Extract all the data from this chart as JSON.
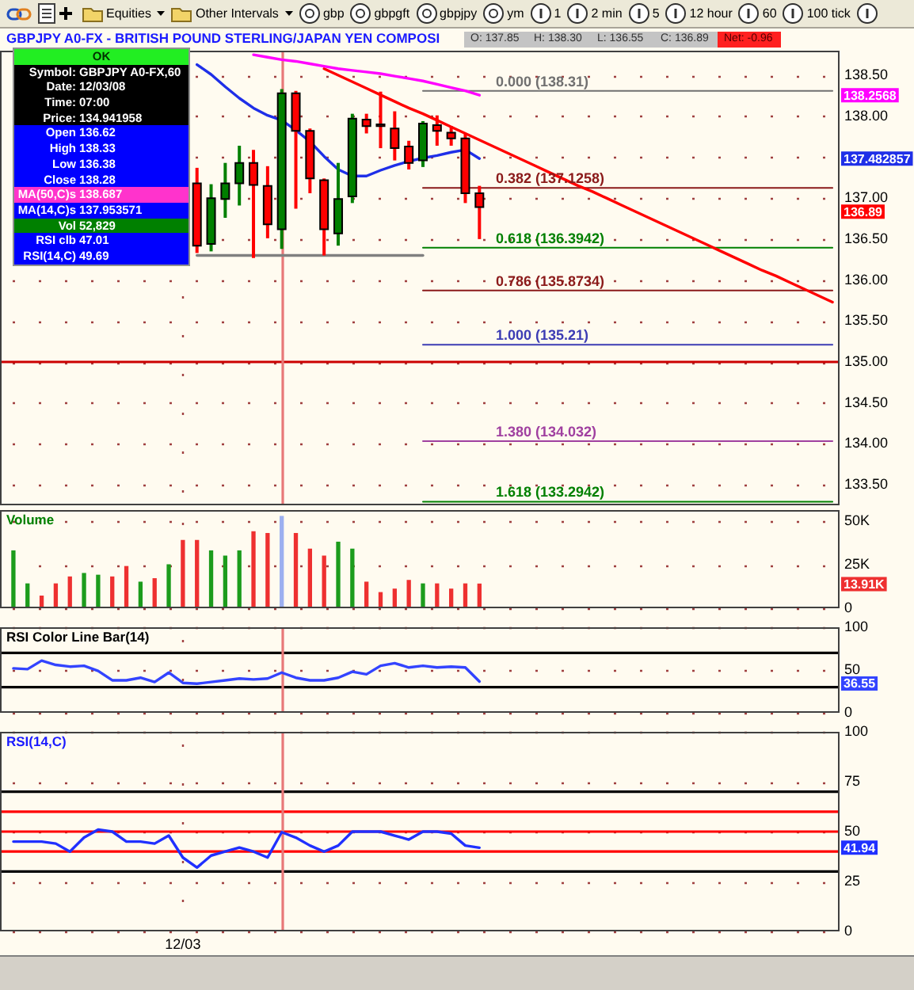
{
  "chart_data": [
    {
      "type": "other",
      "annotations": [
        "Equities",
        "Other Intervals",
        "gbp",
        "gbpgft",
        "gbpjpy",
        "ym",
        "1",
        "2 min",
        "5",
        "12 hour",
        "60",
        "100 tick"
      ]
    },
    {
      "type": "candlestick",
      "title": "GBPJPY A0-FX - BRITISH POUND STERLING/JAPAN YEN COMPOSI",
      "annotations": [
        "O: 137.85",
        "H: 138.30",
        "L: 136.55",
        "C: 136.89",
        "Net: -0.96",
        "138.2568",
        "137.482857",
        "136.89"
      ],
      "categories": [
        null,
        null,
        null,
        null,
        null,
        null,
        null,
        null,
        null,
        null,
        null,
        null,
        null,
        null,
        null,
        null,
        null,
        null,
        null,
        null,
        null,
        null,
        null,
        null,
        null,
        null,
        null,
        null,
        null,
        null,
        null,
        null,
        null,
        null,
        null,
        null,
        null,
        null,
        null,
        null,
        null,
        null,
        null,
        null,
        null,
        null,
        null,
        null,
        null,
        null,
        null,
        null,
        null,
        null,
        null,
        null,
        null,
        null,
        null
      ],
      "ohlc": [
        null,
        null,
        null,
        null,
        null,
        null,
        null,
        null,
        null,
        null,
        null,
        null,
        null,
        [
          137.18,
          137.37,
          136.33,
          136.42
        ],
        [
          136.44,
          137.17,
          136.35,
          137.0
        ],
        [
          136.99,
          137.43,
          136.76,
          137.18
        ],
        [
          137.18,
          137.64,
          136.91,
          137.43
        ],
        [
          137.43,
          137.59,
          136.27,
          137.16
        ],
        [
          137.15,
          137.39,
          136.51,
          136.68
        ],
        [
          136.62,
          138.33,
          136.38,
          138.28
        ],
        [
          138.28,
          138.31,
          136.87,
          137.82
        ],
        [
          137.82,
          137.85,
          137.06,
          137.24
        ],
        [
          137.22,
          137.24,
          136.3,
          136.62
        ],
        [
          136.57,
          137.43,
          136.42,
          136.99
        ],
        [
          137.02,
          138.03,
          136.94,
          137.97
        ],
        [
          137.96,
          138.03,
          137.79,
          137.88
        ],
        [
          137.9,
          138.3,
          137.61,
          137.88
        ],
        [
          137.85,
          138.06,
          137.46,
          137.61
        ],
        [
          137.63,
          137.7,
          137.35,
          137.43
        ],
        [
          137.46,
          137.94,
          137.38,
          137.91
        ],
        [
          137.89,
          138.01,
          137.64,
          137.82
        ],
        [
          137.8,
          137.88,
          137.64,
          137.73
        ],
        [
          137.73,
          137.79,
          136.94,
          137.06
        ],
        [
          137.06,
          137.15,
          136.5,
          136.89
        ],
        null,
        null,
        null,
        null,
        null,
        null,
        null,
        null,
        null,
        null,
        null,
        null,
        null,
        null,
        null,
        null,
        null,
        null,
        null,
        null,
        null,
        null,
        null,
        null,
        null
      ],
      "colors": [
        null,
        null,
        null,
        null,
        null,
        null,
        null,
        null,
        null,
        null,
        null,
        null,
        null,
        "#ff0000",
        "#008000",
        "#008000",
        "#008000",
        "#ff0000",
        "#ff0000",
        "#008000",
        "#ff0000",
        "#ff0000",
        "#ff0000",
        "#008000",
        "#008000",
        "#ff0000",
        "#ff0000",
        "#ff0000",
        "#ff0000",
        "#008000",
        "#ff0000",
        "#ff0000",
        "#ff0000",
        "#ff0000",
        null,
        null,
        null,
        null,
        null,
        null,
        null,
        null,
        null,
        null,
        null,
        null,
        null,
        null,
        null,
        null,
        null,
        null,
        null,
        null,
        null,
        null,
        null,
        null,
        null
      ],
      "series": [
        {
          "type": "line",
          "color": "#ff00ff",
          "values": [
            null,
            null,
            null,
            null,
            null,
            null,
            null,
            null,
            null,
            null,
            null,
            null,
            null,
            null,
            null,
            null,
            null,
            138.75,
            138.72,
            138.69,
            138.67,
            138.64,
            138.61,
            138.58,
            138.56,
            138.54,
            138.52,
            138.49,
            138.46,
            138.43,
            138.39,
            138.35,
            138.31,
            138.2568,
            null,
            null,
            null,
            null,
            null,
            null,
            null,
            null,
            null,
            null,
            null,
            null,
            null,
            null,
            null,
            null,
            null,
            null,
            null,
            null,
            null,
            null,
            null,
            null,
            null
          ]
        },
        {
          "type": "line",
          "color": "#1f2fe8",
          "values": [
            null,
            null,
            null,
            null,
            null,
            null,
            null,
            null,
            null,
            null,
            null,
            null,
            null,
            138.63,
            138.51,
            138.36,
            138.22,
            138.1,
            138.01,
            137.95,
            137.83,
            137.69,
            137.51,
            137.35,
            137.27,
            137.27,
            137.34,
            137.4,
            137.45,
            137.49,
            137.52,
            137.56,
            137.59,
            137.482857,
            null,
            null,
            null,
            null,
            null,
            null,
            null,
            null,
            null,
            null,
            null,
            null,
            null,
            null,
            null,
            null,
            null,
            null,
            null,
            null,
            null,
            null,
            null,
            null,
            null
          ]
        },
        {
          "type": "line",
          "color": "#ff0000",
          "values": [
            null,
            null,
            null,
            null,
            null,
            null,
            null,
            null,
            null,
            null,
            null,
            null,
            null,
            null,
            null,
            null,
            null,
            null,
            null,
            null,
            null,
            null,
            138.58,
            138.5,
            138.42,
            138.34,
            138.26,
            138.18,
            138.1,
            138.03,
            137.95,
            137.87,
            137.79,
            137.71,
            137.63,
            137.55,
            137.47,
            137.39,
            137.31,
            137.23,
            137.15,
            137.08,
            137.0,
            136.92,
            136.84,
            136.76,
            136.68,
            136.6,
            136.52,
            136.44,
            136.36,
            136.28,
            136.2,
            136.12,
            136.05,
            135.97,
            135.89,
            135.81,
            135.73
          ]
        },
        {
          "type": "line",
          "color": "#808080",
          "values": [
            null,
            null,
            null,
            null,
            null,
            null,
            null,
            null,
            null,
            null,
            null,
            null,
            null,
            136.3,
            136.3,
            136.3,
            136.3,
            136.3,
            136.3,
            136.3,
            136.3,
            136.3,
            136.3,
            136.3,
            136.3,
            136.3,
            136.3,
            136.3,
            136.3,
            136.3,
            null,
            null,
            null,
            null,
            null,
            null,
            null,
            null,
            null,
            null,
            null,
            null,
            null,
            null,
            null,
            null,
            null,
            null,
            null,
            null,
            null,
            null,
            null,
            null,
            null,
            null,
            null,
            null,
            null
          ]
        },
        {
          "type": "line",
          "name": "0.000 (138.31)",
          "color": "#707070",
          "values": [
            null,
            null,
            null,
            null,
            null,
            null,
            null,
            null,
            null,
            null,
            null,
            null,
            null,
            null,
            null,
            null,
            null,
            null,
            null,
            null,
            null,
            null,
            null,
            null,
            null,
            null,
            null,
            null,
            null,
            138.31,
            138.31,
            138.31,
            138.31,
            138.31,
            138.31,
            138.31,
            138.31,
            138.31,
            138.31,
            138.31,
            138.31,
            138.31,
            138.31,
            138.31,
            138.31,
            138.31,
            138.31,
            138.31,
            138.31,
            138.31,
            138.31,
            138.31,
            138.31,
            138.31,
            138.31,
            138.31,
            138.31,
            138.31,
            138.31
          ]
        },
        {
          "type": "line",
          "name": "0.382 (137.1258)",
          "color": "#8b1a1a",
          "values": [
            null,
            null,
            null,
            null,
            null,
            null,
            null,
            null,
            null,
            null,
            null,
            null,
            null,
            null,
            null,
            null,
            null,
            null,
            null,
            null,
            null,
            null,
            null,
            null,
            null,
            null,
            null,
            null,
            null,
            137.1258,
            137.1258,
            137.1258,
            137.1258,
            137.1258,
            137.1258,
            137.1258,
            137.1258,
            137.1258,
            137.1258,
            137.1258,
            137.1258,
            137.1258,
            137.1258,
            137.1258,
            137.1258,
            137.1258,
            137.1258,
            137.1258,
            137.1258,
            137.1258,
            137.1258,
            137.1258,
            137.1258,
            137.1258,
            137.1258,
            137.1258,
            137.1258,
            137.1258,
            137.1258
          ]
        },
        {
          "type": "line",
          "name": "0.618 (136.3942)",
          "color": "#008000",
          "values": [
            null,
            null,
            null,
            null,
            null,
            null,
            null,
            null,
            null,
            null,
            null,
            null,
            null,
            null,
            null,
            null,
            null,
            null,
            null,
            null,
            null,
            null,
            null,
            null,
            null,
            null,
            null,
            null,
            null,
            136.3942,
            136.3942,
            136.3942,
            136.3942,
            136.3942,
            136.3942,
            136.3942,
            136.3942,
            136.3942,
            136.3942,
            136.3942,
            136.3942,
            136.3942,
            136.3942,
            136.3942,
            136.3942,
            136.3942,
            136.3942,
            136.3942,
            136.3942,
            136.3942,
            136.3942,
            136.3942,
            136.3942,
            136.3942,
            136.3942,
            136.3942,
            136.3942,
            136.3942,
            136.3942
          ]
        },
        {
          "type": "line",
          "name": "0.786 (135.8734)",
          "color": "#8b1a1a",
          "values": [
            null,
            null,
            null,
            null,
            null,
            null,
            null,
            null,
            null,
            null,
            null,
            null,
            null,
            null,
            null,
            null,
            null,
            null,
            null,
            null,
            null,
            null,
            null,
            null,
            null,
            null,
            null,
            null,
            null,
            135.8734,
            135.8734,
            135.8734,
            135.8734,
            135.8734,
            135.8734,
            135.8734,
            135.8734,
            135.8734,
            135.8734,
            135.8734,
            135.8734,
            135.8734,
            135.8734,
            135.8734,
            135.8734,
            135.8734,
            135.8734,
            135.8734,
            135.8734,
            135.8734,
            135.8734,
            135.8734,
            135.8734,
            135.8734,
            135.8734,
            135.8734,
            135.8734,
            135.8734,
            135.8734
          ]
        },
        {
          "type": "line",
          "name": "1.000 (135.21)",
          "color": "#3c3cb4",
          "values": [
            null,
            null,
            null,
            null,
            null,
            null,
            null,
            null,
            null,
            null,
            null,
            null,
            null,
            null,
            null,
            null,
            null,
            null,
            null,
            null,
            null,
            null,
            null,
            null,
            null,
            null,
            null,
            null,
            null,
            135.21,
            135.21,
            135.21,
            135.21,
            135.21,
            135.21,
            135.21,
            135.21,
            135.21,
            135.21,
            135.21,
            135.21,
            135.21,
            135.21,
            135.21,
            135.21,
            135.21,
            135.21,
            135.21,
            135.21,
            135.21,
            135.21,
            135.21,
            135.21,
            135.21,
            135.21,
            135.21,
            135.21,
            135.21,
            135.21
          ]
        },
        {
          "type": "line",
          "name": "1.380 (134.032)",
          "color": "#a040a0",
          "values": [
            null,
            null,
            null,
            null,
            null,
            null,
            null,
            null,
            null,
            null,
            null,
            null,
            null,
            null,
            null,
            null,
            null,
            null,
            null,
            null,
            null,
            null,
            null,
            null,
            null,
            null,
            null,
            null,
            null,
            134.032,
            134.032,
            134.032,
            134.032,
            134.032,
            134.032,
            134.032,
            134.032,
            134.032,
            134.032,
            134.032,
            134.032,
            134.032,
            134.032,
            134.032,
            134.032,
            134.032,
            134.032,
            134.032,
            134.032,
            134.032,
            134.032,
            134.032,
            134.032,
            134.032,
            134.032,
            134.032,
            134.032,
            134.032,
            134.032
          ]
        },
        {
          "type": "line",
          "name": "1.618 (133.2942)",
          "color": "#008000",
          "values": [
            null,
            null,
            null,
            null,
            null,
            null,
            null,
            null,
            null,
            null,
            null,
            null,
            null,
            null,
            null,
            null,
            null,
            null,
            null,
            null,
            null,
            null,
            null,
            null,
            null,
            null,
            null,
            null,
            null,
            133.2942,
            133.2942,
            133.2942,
            133.2942,
            133.2942,
            133.2942,
            133.2942,
            133.2942,
            133.2942,
            133.2942,
            133.2942,
            133.2942,
            133.2942,
            133.2942,
            133.2942,
            133.2942,
            133.2942,
            133.2942,
            133.2942,
            133.2942,
            133.2942,
            133.2942,
            133.2942,
            133.2942,
            133.2942,
            133.2942,
            133.2942,
            133.2942,
            133.2942,
            133.2942
          ]
        }
      ],
      "ref_lines": [
        {
          "axis": "y",
          "value": 135,
          "color": "#cc0000"
        }
      ],
      "ylim": [
        133.25,
        138.8
      ],
      "yticks": [
        {
          "value": 133.5,
          "label": "133.50"
        },
        {
          "value": 134,
          "label": "134.00"
        },
        {
          "value": 134.5,
          "label": "134.50"
        },
        {
          "value": 135,
          "label": "135.00"
        },
        {
          "value": 135.5,
          "label": "135.50"
        },
        {
          "value": 136,
          "label": "136.00"
        },
        {
          "value": 136.5,
          "label": "136.50"
        },
        {
          "value": 137,
          "label": "137.00"
        },
        {
          "value": 137.5,
          "label": null
        },
        {
          "value": 138,
          "label": "138.00"
        },
        {
          "value": 138.5,
          "label": "138.50"
        }
      ],
      "tick_labels": "y",
      "grid": "y"
    },
    {
      "type": "other",
      "annotations": [
        "OK",
        "Symbol: GBPJPY A0-FX,60",
        "Date: 12/03/08",
        "Time: 07:00",
        "Price: 134.941958",
        "Open 136.62",
        "High 138.33",
        "Low 136.38",
        "Close 138.28",
        "MA(50,C)s 138.687",
        "MA(14,C)s 137.953571",
        "Vol 52,829",
        "RSI clb 47.01",
        "RSI(14,C) 49.69"
      ]
    },
    {
      "type": "bar",
      "title": "Volume",
      "annotations": [
        {
          "text": "13.91K",
          "y": 13910
        }
      ],
      "categories": [
        null,
        null,
        null,
        null,
        null,
        null,
        null,
        null,
        null,
        null,
        null,
        null,
        null,
        null,
        null,
        null,
        null,
        null,
        null,
        null,
        null,
        null,
        null,
        null,
        null,
        null,
        null,
        null,
        null,
        null,
        null,
        null,
        null,
        null,
        null,
        null,
        null,
        null,
        null,
        null,
        null,
        null,
        null,
        null,
        null,
        null,
        null,
        null,
        null,
        null,
        null,
        null,
        null,
        null,
        null,
        null,
        null,
        null,
        null
      ],
      "values": [
        33000,
        14000,
        7000,
        14000,
        18000,
        20000,
        19000,
        18000,
        24000,
        15000,
        17000,
        25000,
        39000,
        39000,
        33000,
        30000,
        33000,
        44000,
        43000,
        52829,
        43000,
        34000,
        30000,
        38000,
        34000,
        15000,
        9000,
        11000,
        16000,
        14000,
        14000,
        11000,
        14000,
        13910,
        null,
        null,
        null,
        null,
        null,
        null,
        null,
        null,
        null,
        null,
        null,
        null,
        null,
        null,
        null,
        null,
        null,
        null,
        null,
        null,
        null,
        null,
        null,
        null,
        null
      ],
      "colors": [
        "#1c9c1c",
        "#1c9c1c",
        "#ee3030",
        "#ee3030",
        "#ee3030",
        "#1c9c1c",
        "#1c9c1c",
        "#ee3030",
        "#ee3030",
        "#1c9c1c",
        "#ee3030",
        "#1c9c1c",
        "#ee3030",
        "#ee3030",
        "#1c9c1c",
        "#1c9c1c",
        "#1c9c1c",
        "#ee3030",
        "#ee3030",
        "#9cb0f0",
        "#ee3030",
        "#ee3030",
        "#ee3030",
        "#1c9c1c",
        "#1c9c1c",
        "#ee3030",
        "#ee3030",
        "#ee3030",
        "#ee3030",
        "#1c9c1c",
        "#ee3030",
        "#ee3030",
        "#ee3030",
        "#ee3030",
        null,
        null,
        null,
        null,
        null,
        null,
        null,
        null,
        null,
        null,
        null,
        null,
        null,
        null,
        null,
        null,
        null,
        null,
        null,
        null,
        null,
        null,
        null,
        null,
        null
      ],
      "ylim": [
        0,
        56500
      ],
      "yticks": [
        0,
        {
          "value": 25000,
          "label": "25K"
        },
        {
          "value": 50000,
          "label": "50K"
        }
      ],
      "tick_labels": "y",
      "grid": "y"
    },
    {
      "type": "line",
      "title": "RSI Color Line Bar(14)",
      "annotations": [
        {
          "text": "36.55",
          "y": 36.55
        }
      ],
      "categories": [
        null,
        null,
        null,
        null,
        null,
        null,
        null,
        null,
        null,
        null,
        null,
        null,
        null,
        null,
        null,
        null,
        null,
        null,
        null,
        null,
        null,
        null,
        null,
        null,
        null,
        null,
        null,
        null,
        null,
        null,
        null,
        null,
        null,
        null,
        null,
        null,
        null,
        null,
        null,
        null,
        null,
        null,
        null,
        null,
        null,
        null,
        null,
        null,
        null,
        null,
        null,
        null,
        null,
        null,
        null,
        null,
        null,
        null,
        null
      ],
      "series": [
        {
          "color": "#3344ff",
          "values": [
            52,
            51,
            61,
            56,
            54,
            55,
            49,
            38,
            38,
            41,
            36,
            47,
            35,
            34,
            36,
            38,
            40,
            39,
            40,
            47.01,
            41,
            38,
            38,
            41,
            48,
            45,
            55,
            58,
            53,
            55,
            53,
            54,
            53,
            36.55,
            null,
            null,
            null,
            null,
            null,
            null,
            null,
            null,
            null,
            null,
            null,
            null,
            null,
            null,
            null,
            null,
            null,
            null,
            null,
            null,
            null,
            null,
            null,
            null,
            null
          ]
        }
      ],
      "ref_lines": [
        {
          "axis": "y",
          "value": 70,
          "color": "#000000"
        },
        {
          "axis": "y",
          "value": 30,
          "color": "#000000"
        }
      ],
      "ylim": [
        0,
        100
      ],
      "yticks": [
        0,
        50,
        100
      ],
      "tick_labels": "y",
      "grid": "y"
    },
    {
      "type": "line",
      "title": "RSI(14,C)",
      "annotations": [
        {
          "text": "41.94",
          "y": 41.94
        }
      ],
      "categories": [
        null,
        null,
        null,
        null,
        null,
        null,
        null,
        null,
        null,
        null,
        null,
        null,
        "12/03",
        null,
        null,
        null,
        null,
        null,
        null,
        null,
        null,
        null,
        null,
        null,
        null,
        null,
        null,
        null,
        null,
        null,
        null,
        null,
        null,
        null,
        null,
        null,
        null,
        null,
        null,
        null,
        null,
        null,
        null,
        null,
        null,
        null,
        null,
        null,
        null,
        null,
        null,
        null,
        null,
        null,
        null,
        null,
        null,
        null,
        null
      ],
      "series": [
        {
          "color": "#2030ff",
          "values": [
            45,
            45,
            45,
            44,
            40,
            47,
            51,
            50,
            45,
            45,
            44,
            48,
            37,
            32,
            38,
            40,
            42,
            40,
            37,
            49.69,
            47,
            43,
            40,
            43,
            50,
            50,
            50,
            48,
            46,
            50,
            50,
            49,
            43,
            41.94,
            null,
            null,
            null,
            null,
            null,
            null,
            null,
            null,
            null,
            null,
            null,
            null,
            null,
            null,
            null,
            null,
            null,
            null,
            null,
            null,
            null,
            null,
            null,
            null,
            null
          ]
        }
      ],
      "ref_lines": [
        {
          "axis": "y",
          "value": 70,
          "color": "#000000"
        },
        {
          "axis": "y",
          "value": 60,
          "color": "#ff0000"
        },
        {
          "axis": "y",
          "value": 50,
          "color": "#ff0000"
        },
        {
          "axis": "y",
          "value": 40,
          "color": "#ff0000"
        },
        {
          "axis": "y",
          "value": 30,
          "color": "#000000"
        },
        {
          "axis": "x",
          "value": "12/03",
          "color": "#a04040",
          "line_style": "dotted"
        }
      ],
      "ylim": [
        0,
        100
      ],
      "yticks": [
        0,
        25,
        50,
        75,
        100
      ],
      "grid": "y"
    }
  ]
}
